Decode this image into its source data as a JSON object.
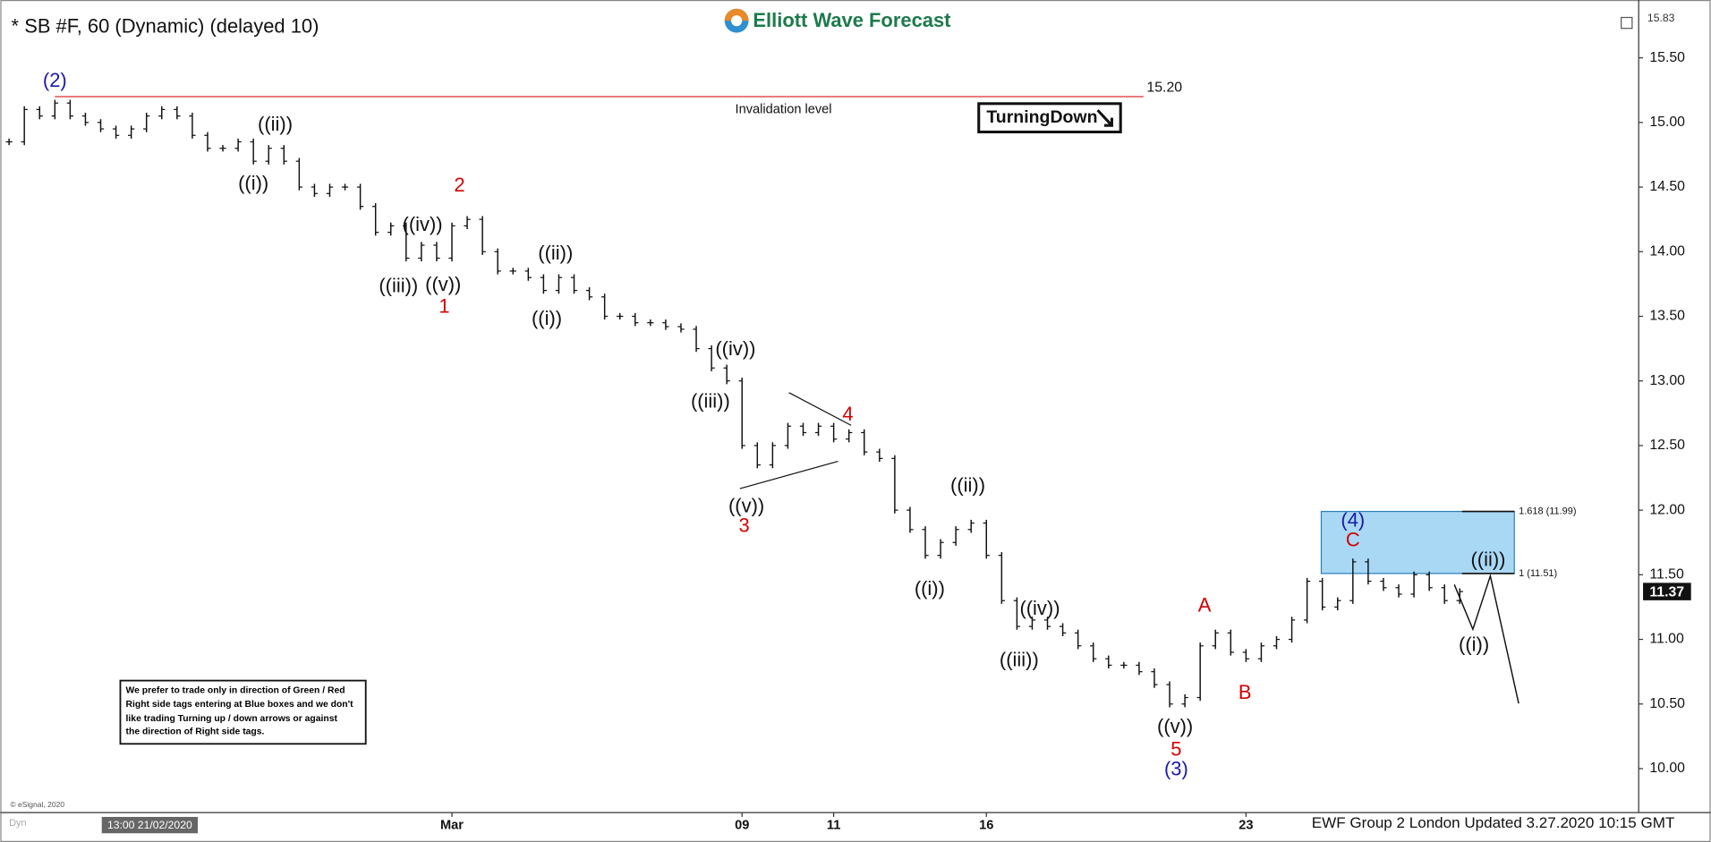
{
  "chart_data": {
    "type": "bar-chart-hourly",
    "title": "* SB #F, 60 (Dynamic) (delayed 10)",
    "logo": "Elliott Wave Forecast",
    "footer": "EWF Group 2 London Updated 3.27.2020 10:15 GMT",
    "copyright": "© eSignal, 2020",
    "mode_label": "Dyn",
    "cursor_time": "13:00 21/02/2020",
    "top_price": 15.83,
    "last_price": 11.37,
    "bar_color": "#111111",
    "categories": [
      null,
      null,
      null,
      null,
      null,
      null,
      null,
      null,
      null,
      null,
      null,
      null,
      null,
      null,
      null,
      null,
      null,
      null,
      null,
      null,
      null,
      null,
      null,
      null,
      null,
      null,
      null,
      null,
      null,
      "Mar",
      null,
      null,
      null,
      null,
      null,
      null,
      null,
      null,
      null,
      null,
      null,
      null,
      null,
      null,
      null,
      null,
      null,
      null,
      "09",
      null,
      null,
      null,
      null,
      null,
      "11",
      null,
      null,
      null,
      null,
      null,
      null,
      null,
      null,
      null,
      "16",
      null,
      null,
      null,
      null,
      null,
      null,
      null,
      null,
      null,
      null,
      null,
      null,
      null,
      null,
      null,
      null,
      "23",
      null,
      null,
      null,
      null,
      null,
      null,
      null,
      null,
      null,
      null,
      null,
      null,
      null,
      null
    ],
    "values": [
      14.85,
      15.1,
      15.05,
      15.15,
      15.05,
      15.0,
      14.95,
      14.9,
      14.95,
      15.05,
      15.1,
      15.05,
      14.9,
      14.8,
      14.8,
      14.85,
      14.7,
      14.8,
      14.7,
      14.5,
      14.45,
      14.5,
      14.5,
      14.35,
      14.15,
      14.2,
      13.95,
      14.05,
      13.95,
      14.2,
      14.25,
      14.0,
      13.85,
      13.85,
      13.8,
      13.7,
      13.8,
      13.7,
      13.65,
      13.5,
      13.5,
      13.45,
      13.45,
      13.42,
      13.4,
      13.25,
      13.1,
      13.0,
      12.5,
      12.35,
      12.5,
      12.65,
      12.6,
      12.65,
      12.55,
      12.6,
      12.45,
      12.4,
      12.0,
      11.85,
      11.65,
      11.75,
      11.85,
      11.9,
      11.65,
      11.3,
      11.1,
      11.15,
      11.1,
      11.05,
      10.95,
      10.85,
      10.8,
      10.8,
      10.75,
      10.65,
      10.5,
      10.55,
      10.95,
      11.05,
      10.9,
      10.85,
      10.95,
      11.0,
      11.15,
      11.45,
      11.25,
      11.3,
      11.6,
      11.45,
      11.4,
      11.35,
      11.5,
      11.4,
      11.3,
      11.37
    ],
    "ylim": [
      9.66,
      15.88
    ],
    "yticks": [
      {
        "value": 10,
        "label": "10.00"
      },
      {
        "value": 10.5,
        "label": "10.50"
      },
      {
        "value": 11,
        "label": "11.00"
      },
      {
        "value": 11.5,
        "label": "11.50"
      },
      {
        "value": 12,
        "label": "12.00"
      },
      {
        "value": 12.5,
        "label": "12.50"
      },
      {
        "value": 13,
        "label": "13.00"
      },
      {
        "value": 13.5,
        "label": "13.50"
      },
      {
        "value": 14,
        "label": "14.00"
      },
      {
        "value": 14.5,
        "label": "14.50"
      },
      {
        "value": 15,
        "label": "15.00"
      },
      {
        "value": 15.5,
        "label": "15.50"
      }
    ],
    "invalidation": {
      "value": 15.2,
      "label": "15.20",
      "text": "Invalidation level",
      "color": "#e05050"
    },
    "tag": "TurningDown",
    "blue_box": {
      "color": "#a9d8f5"
    },
    "fib_levels": [
      {
        "value": 11.99,
        "label": "1.618 (11.99)"
      },
      {
        "value": 11.51,
        "label": "1 (11.51)"
      }
    ],
    "wave_labels": [
      {
        "text": "(2)",
        "color": "#1a1aa8"
      },
      {
        "text": "((ii))",
        "color": "#111111"
      },
      {
        "text": "((i))",
        "color": "#111111"
      },
      {
        "text": "2",
        "color": "#d40000"
      },
      {
        "text": "((iv))",
        "color": "#111111"
      },
      {
        "text": "((iii))",
        "color": "#111111"
      },
      {
        "text": "((v))",
        "color": "#111111"
      },
      {
        "text": "1",
        "color": "#d40000"
      },
      {
        "text": "((ii))",
        "color": "#111111"
      },
      {
        "text": "((i))",
        "color": "#111111"
      },
      {
        "text": "((iv))",
        "color": "#111111"
      },
      {
        "text": "((iii))",
        "color": "#111111"
      },
      {
        "text": "4",
        "color": "#d40000"
      },
      {
        "text": "((v))",
        "color": "#111111"
      },
      {
        "text": "3",
        "color": "#d40000"
      },
      {
        "text": "((ii))",
        "color": "#111111"
      },
      {
        "text": "((i))",
        "color": "#111111"
      },
      {
        "text": "((iv))",
        "color": "#111111"
      },
      {
        "text": "((iii))",
        "color": "#111111"
      },
      {
        "text": "((v))",
        "color": "#111111"
      },
      {
        "text": "5",
        "color": "#d40000"
      },
      {
        "text": "(3)",
        "color": "#1a1aa8"
      },
      {
        "text": "A",
        "color": "#d40000"
      },
      {
        "text": "B",
        "color": "#d40000"
      },
      {
        "text": "(4)",
        "color": "#1a1aa8"
      },
      {
        "text": "C",
        "color": "#d40000"
      },
      {
        "text": "((ii))",
        "color": "#111111"
      },
      {
        "text": "((i))",
        "color": "#111111"
      }
    ],
    "disclaimer": [
      "We prefer to trade only in direction of Green / Red",
      "Right side tags entering at Blue boxes and we don't",
      "like trading Turning up / down arrows or against",
      "the direction of Right side tags."
    ]
  }
}
